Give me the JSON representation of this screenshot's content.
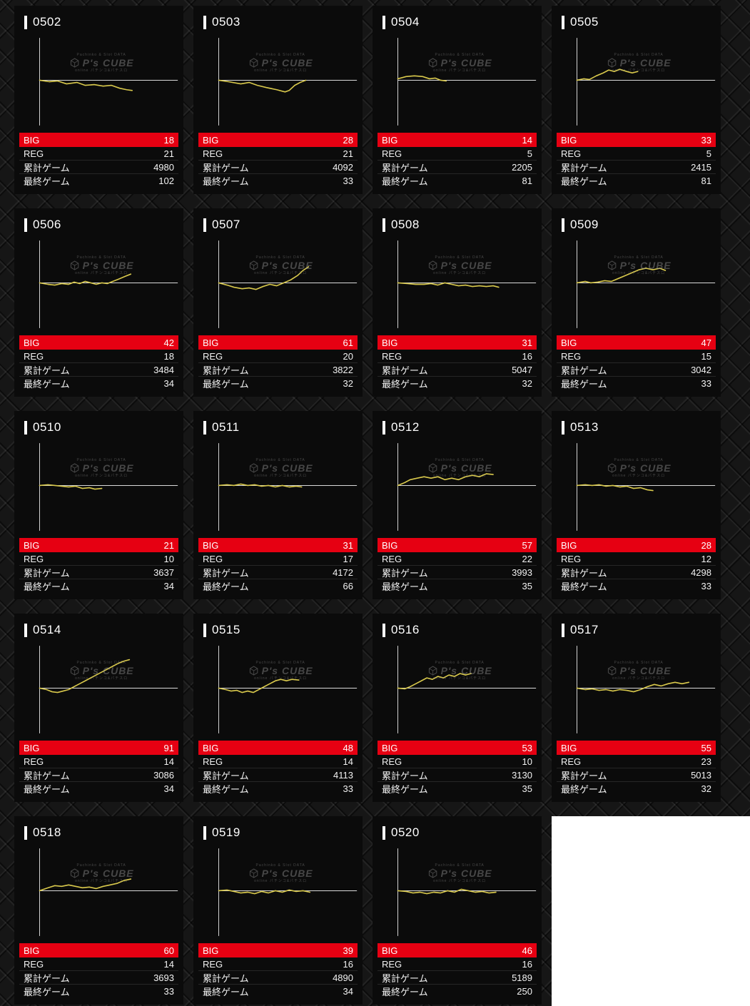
{
  "labels": {
    "big": "BIG",
    "reg": "REG",
    "total_games": "累計ゲーム",
    "last_game": "最終ゲーム"
  },
  "watermark": {
    "brand": "P's CUBE",
    "sub_top": "Pachinko & Slot DATA",
    "sub_bottom": "online パチンコ&パチスロ"
  },
  "colors": {
    "big_bar": "#e60012",
    "trend_line": "#d9c94c",
    "card_background": "#0b0b0b",
    "axis": "#d9d9d9",
    "empty_area": "#ffffff"
  },
  "chart_type": "line-sparkline",
  "machines": [
    {
      "id": "0502",
      "big": 18,
      "reg": 21,
      "total_games": 4980,
      "last_game": 102,
      "spark": [
        [
          16,
          64
        ],
        [
          30,
          66
        ],
        [
          42,
          65
        ],
        [
          55,
          69
        ],
        [
          70,
          67
        ],
        [
          82,
          71
        ],
        [
          95,
          70
        ],
        [
          108,
          72
        ],
        [
          120,
          71
        ],
        [
          132,
          75
        ],
        [
          142,
          77
        ],
        [
          150,
          78
        ]
      ]
    },
    {
      "id": "0503",
      "big": 28,
      "reg": 21,
      "total_games": 4092,
      "last_game": 33,
      "spark": [
        [
          16,
          64
        ],
        [
          30,
          66
        ],
        [
          48,
          69
        ],
        [
          60,
          67
        ],
        [
          72,
          71
        ],
        [
          85,
          74
        ],
        [
          100,
          77
        ],
        [
          112,
          80
        ],
        [
          118,
          78
        ],
        [
          126,
          71
        ],
        [
          134,
          67
        ],
        [
          142,
          64
        ]
      ]
    },
    {
      "id": "0504",
      "big": 14,
      "reg": 5,
      "total_games": 2205,
      "last_game": 81,
      "spark": [
        [
          16,
          62
        ],
        [
          28,
          59
        ],
        [
          40,
          58
        ],
        [
          52,
          59
        ],
        [
          62,
          62
        ],
        [
          70,
          61
        ],
        [
          78,
          64
        ],
        [
          86,
          65
        ]
      ]
    },
    {
      "id": "0505",
      "big": 33,
      "reg": 5,
      "total_games": 2415,
      "last_game": 81,
      "spark": [
        [
          16,
          64
        ],
        [
          26,
          62
        ],
        [
          34,
          63
        ],
        [
          44,
          58
        ],
        [
          54,
          54
        ],
        [
          62,
          50
        ],
        [
          70,
          52
        ],
        [
          78,
          49
        ],
        [
          88,
          52
        ],
        [
          96,
          54
        ],
        [
          104,
          52
        ]
      ]
    },
    {
      "id": "0506",
      "big": 42,
      "reg": 18,
      "total_games": 3484,
      "last_game": 34,
      "spark": [
        [
          16,
          64
        ],
        [
          28,
          66
        ],
        [
          38,
          67
        ],
        [
          48,
          65
        ],
        [
          58,
          66
        ],
        [
          66,
          63
        ],
        [
          74,
          65
        ],
        [
          82,
          62
        ],
        [
          90,
          64
        ],
        [
          98,
          66
        ],
        [
          106,
          64
        ],
        [
          114,
          65
        ],
        [
          122,
          62
        ],
        [
          130,
          59
        ],
        [
          140,
          55
        ],
        [
          148,
          52
        ]
      ]
    },
    {
      "id": "0507",
      "big": 61,
      "reg": 20,
      "total_games": 3822,
      "last_game": 32,
      "spark": [
        [
          16,
          64
        ],
        [
          28,
          67
        ],
        [
          38,
          70
        ],
        [
          50,
          72
        ],
        [
          60,
          71
        ],
        [
          70,
          73
        ],
        [
          80,
          69
        ],
        [
          90,
          66
        ],
        [
          100,
          68
        ],
        [
          110,
          64
        ],
        [
          120,
          60
        ],
        [
          130,
          54
        ],
        [
          138,
          47
        ],
        [
          146,
          42
        ]
      ]
    },
    {
      "id": "0508",
      "big": 31,
      "reg": 16,
      "total_games": 5047,
      "last_game": 32,
      "spark": [
        [
          16,
          64
        ],
        [
          30,
          65
        ],
        [
          42,
          66
        ],
        [
          54,
          66
        ],
        [
          64,
          65
        ],
        [
          74,
          67
        ],
        [
          84,
          64
        ],
        [
          94,
          66
        ],
        [
          104,
          68
        ],
        [
          114,
          67
        ],
        [
          124,
          69
        ],
        [
          134,
          68
        ],
        [
          144,
          69
        ],
        [
          154,
          68
        ],
        [
          162,
          70
        ]
      ]
    },
    {
      "id": "0509",
      "big": 47,
      "reg": 15,
      "total_games": 3042,
      "last_game": 33,
      "spark": [
        [
          16,
          64
        ],
        [
          28,
          62
        ],
        [
          36,
          64
        ],
        [
          46,
          63
        ],
        [
          56,
          61
        ],
        [
          66,
          62
        ],
        [
          76,
          58
        ],
        [
          86,
          54
        ],
        [
          96,
          50
        ],
        [
          106,
          46
        ],
        [
          116,
          44
        ],
        [
          126,
          46
        ],
        [
          136,
          44
        ],
        [
          144,
          47
        ]
      ]
    },
    {
      "id": "0510",
      "big": 21,
      "reg": 10,
      "total_games": 3637,
      "last_game": 34,
      "spark": [
        [
          16,
          64
        ],
        [
          28,
          63
        ],
        [
          38,
          64
        ],
        [
          48,
          65
        ],
        [
          58,
          66
        ],
        [
          68,
          65
        ],
        [
          78,
          68
        ],
        [
          88,
          67
        ],
        [
          96,
          69
        ],
        [
          106,
          68
        ]
      ]
    },
    {
      "id": "0511",
      "big": 31,
      "reg": 17,
      "total_games": 4172,
      "last_game": 66,
      "spark": [
        [
          16,
          64
        ],
        [
          28,
          63
        ],
        [
          38,
          64
        ],
        [
          48,
          62
        ],
        [
          58,
          64
        ],
        [
          68,
          63
        ],
        [
          78,
          65
        ],
        [
          88,
          64
        ],
        [
          98,
          66
        ],
        [
          108,
          64
        ],
        [
          118,
          66
        ],
        [
          128,
          65
        ],
        [
          136,
          66
        ]
      ]
    },
    {
      "id": "0512",
      "big": 57,
      "reg": 22,
      "total_games": 3993,
      "last_game": 35,
      "spark": [
        [
          16,
          64
        ],
        [
          26,
          60
        ],
        [
          34,
          56
        ],
        [
          44,
          54
        ],
        [
          54,
          52
        ],
        [
          64,
          54
        ],
        [
          74,
          52
        ],
        [
          84,
          56
        ],
        [
          94,
          54
        ],
        [
          104,
          56
        ],
        [
          114,
          52
        ],
        [
          124,
          50
        ],
        [
          134,
          52
        ],
        [
          144,
          48
        ],
        [
          154,
          49
        ]
      ]
    },
    {
      "id": "0513",
      "big": 28,
      "reg": 12,
      "total_games": 4298,
      "last_game": 33,
      "spark": [
        [
          16,
          64
        ],
        [
          28,
          63
        ],
        [
          38,
          64
        ],
        [
          48,
          63
        ],
        [
          58,
          65
        ],
        [
          68,
          64
        ],
        [
          78,
          66
        ],
        [
          88,
          65
        ],
        [
          98,
          68
        ],
        [
          108,
          67
        ],
        [
          118,
          70
        ],
        [
          126,
          71
        ]
      ]
    },
    {
      "id": "0514",
      "big": 91,
      "reg": 14,
      "total_games": 3086,
      "last_game": 34,
      "spark": [
        [
          16,
          64
        ],
        [
          26,
          66
        ],
        [
          34,
          69
        ],
        [
          42,
          70
        ],
        [
          50,
          68
        ],
        [
          58,
          66
        ],
        [
          66,
          62
        ],
        [
          74,
          58
        ],
        [
          82,
          54
        ],
        [
          90,
          50
        ],
        [
          98,
          46
        ],
        [
          106,
          42
        ],
        [
          114,
          38
        ],
        [
          122,
          34
        ],
        [
          130,
          30
        ],
        [
          138,
          27
        ],
        [
          146,
          25
        ]
      ]
    },
    {
      "id": "0515",
      "big": 48,
      "reg": 14,
      "total_games": 4113,
      "last_game": 33,
      "spark": [
        [
          16,
          64
        ],
        [
          26,
          66
        ],
        [
          34,
          68
        ],
        [
          42,
          67
        ],
        [
          50,
          70
        ],
        [
          58,
          68
        ],
        [
          66,
          70
        ],
        [
          74,
          66
        ],
        [
          82,
          62
        ],
        [
          90,
          58
        ],
        [
          98,
          54
        ],
        [
          106,
          52
        ],
        [
          114,
          54
        ],
        [
          122,
          52
        ],
        [
          132,
          53
        ]
      ]
    },
    {
      "id": "0516",
      "big": 53,
      "reg": 10,
      "total_games": 3130,
      "last_game": 35,
      "spark": [
        [
          16,
          64
        ],
        [
          26,
          65
        ],
        [
          34,
          62
        ],
        [
          42,
          58
        ],
        [
          50,
          54
        ],
        [
          58,
          50
        ],
        [
          66,
          52
        ],
        [
          74,
          48
        ],
        [
          82,
          50
        ],
        [
          90,
          46
        ],
        [
          98,
          48
        ],
        [
          106,
          44
        ],
        [
          114,
          46
        ],
        [
          122,
          44
        ]
      ]
    },
    {
      "id": "0517",
      "big": 55,
      "reg": 23,
      "total_games": 5013,
      "last_game": 32,
      "spark": [
        [
          16,
          64
        ],
        [
          28,
          66
        ],
        [
          38,
          65
        ],
        [
          48,
          67
        ],
        [
          58,
          66
        ],
        [
          68,
          68
        ],
        [
          78,
          66
        ],
        [
          88,
          67
        ],
        [
          98,
          69
        ],
        [
          108,
          66
        ],
        [
          118,
          62
        ],
        [
          128,
          59
        ],
        [
          138,
          61
        ],
        [
          148,
          58
        ],
        [
          158,
          56
        ],
        [
          168,
          58
        ],
        [
          178,
          56
        ]
      ]
    },
    {
      "id": "0518",
      "big": 60,
      "reg": 14,
      "total_games": 3693,
      "last_game": 33,
      "spark": [
        [
          16,
          64
        ],
        [
          28,
          60
        ],
        [
          38,
          57
        ],
        [
          48,
          58
        ],
        [
          58,
          56
        ],
        [
          68,
          58
        ],
        [
          78,
          60
        ],
        [
          88,
          59
        ],
        [
          98,
          61
        ],
        [
          108,
          58
        ],
        [
          118,
          56
        ],
        [
          128,
          54
        ],
        [
          138,
          50
        ],
        [
          148,
          48
        ]
      ]
    },
    {
      "id": "0519",
      "big": 39,
      "reg": 16,
      "total_games": 4890,
      "last_game": 34,
      "spark": [
        [
          16,
          64
        ],
        [
          28,
          63
        ],
        [
          38,
          65
        ],
        [
          48,
          67
        ],
        [
          58,
          66
        ],
        [
          68,
          68
        ],
        [
          78,
          65
        ],
        [
          88,
          67
        ],
        [
          98,
          64
        ],
        [
          108,
          66
        ],
        [
          118,
          63
        ],
        [
          128,
          65
        ],
        [
          138,
          64
        ],
        [
          148,
          66
        ]
      ]
    },
    {
      "id": "0520",
      "big": 46,
      "reg": 16,
      "total_games": 5189,
      "last_game": 250,
      "spark": [
        [
          16,
          64
        ],
        [
          28,
          65
        ],
        [
          38,
          67
        ],
        [
          48,
          66
        ],
        [
          58,
          68
        ],
        [
          68,
          66
        ],
        [
          78,
          67
        ],
        [
          88,
          64
        ],
        [
          98,
          66
        ],
        [
          108,
          62
        ],
        [
          118,
          64
        ],
        [
          128,
          66
        ],
        [
          138,
          65
        ],
        [
          148,
          67
        ],
        [
          158,
          66
        ]
      ]
    }
  ]
}
